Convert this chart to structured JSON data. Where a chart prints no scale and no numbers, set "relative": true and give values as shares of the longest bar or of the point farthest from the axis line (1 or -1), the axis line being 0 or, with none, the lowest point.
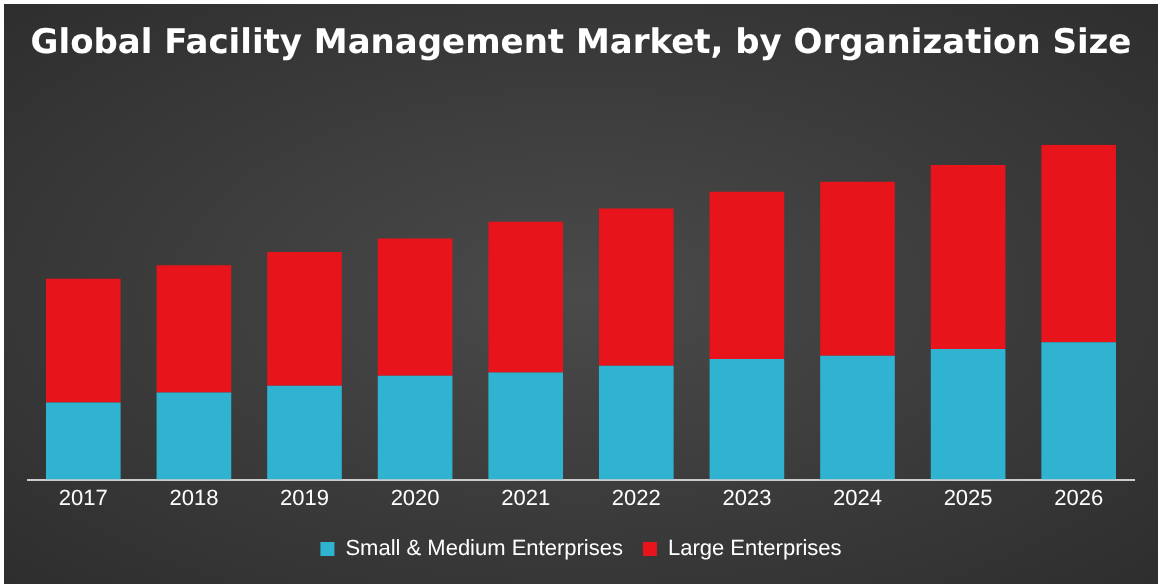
{
  "chart_data": {
    "type": "bar",
    "title": "Global Facility Management Market, by Organization Size",
    "stacked": true,
    "relative": true,
    "categories": [
      "2017",
      "2018",
      "2019",
      "2020",
      "2021",
      "2022",
      "2023",
      "2024",
      "2025",
      "2026"
    ],
    "series": [
      {
        "name": "Small & Medium Enterprises",
        "color": "#2fb3d1",
        "values": [
          0.23,
          0.26,
          0.28,
          0.31,
          0.32,
          0.34,
          0.36,
          0.37,
          0.39,
          0.41
        ]
      },
      {
        "name": "Large Enterprises",
        "color": "#e8141b",
        "values": [
          0.37,
          0.38,
          0.4,
          0.41,
          0.45,
          0.47,
          0.5,
          0.52,
          0.55,
          0.59
        ]
      }
    ],
    "grid": false,
    "legend": "bottom"
  }
}
